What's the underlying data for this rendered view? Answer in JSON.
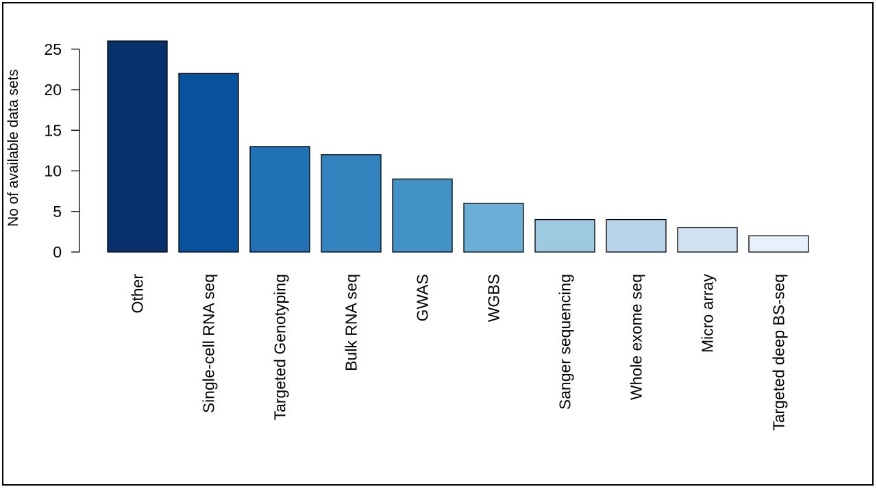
{
  "chart_data": {
    "type": "bar",
    "title": "",
    "xlabel": "",
    "ylabel": "No of available data sets",
    "categories": [
      "Other",
      "Single-cell RNA seq",
      "Targeted Genotyping",
      "Bulk RNA seq",
      "GWAS",
      "WGBS",
      "Sanger sequencing",
      "Whole exome seq",
      "Micro array",
      "Targeted deep BS-seq"
    ],
    "values": [
      26,
      22,
      13,
      12,
      9,
      6,
      4,
      4,
      3,
      2
    ],
    "ylim": [
      0,
      26
    ],
    "yticks": [
      0,
      5,
      10,
      15,
      20,
      25
    ],
    "grid": false,
    "colors": [
      "#08306b",
      "#08519c",
      "#2171b5",
      "#3182bd",
      "#4292c6",
      "#6baed6",
      "#9ecae1",
      "#b7d4ea",
      "#d0e1f2",
      "#e6f0fa"
    ]
  }
}
